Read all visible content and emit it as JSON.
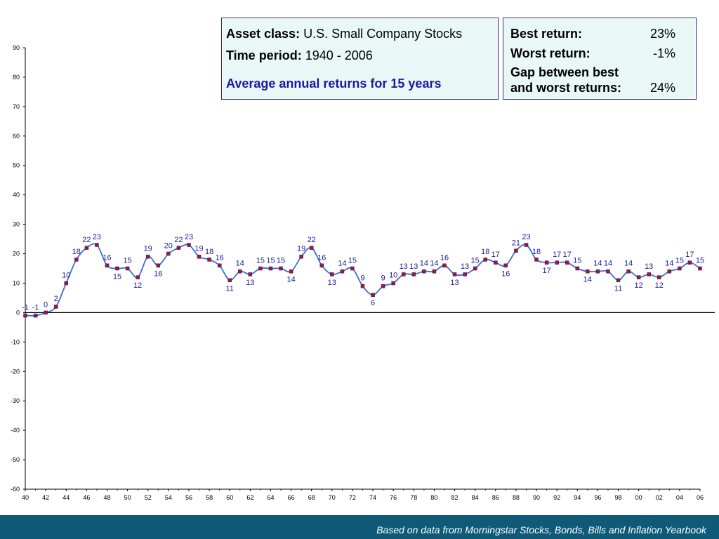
{
  "info": {
    "asset_class_label": "Asset class:",
    "asset_class_value": "U.S. Small Company Stocks",
    "time_period_label": "Time period:",
    "time_period_value": "1940 - 2006",
    "subtitle": "Average annual returns for 15 years"
  },
  "stats": {
    "best_label": "Best return:",
    "best_value": "23%",
    "worst_label": "Worst return:",
    "worst_value": "-1%",
    "gap_label_line1": "Gap between best",
    "gap_label_line2": "and worst returns:",
    "gap_value": "24%"
  },
  "footer": {
    "source_text": "Based on data from Morningstar Stocks, Bonds, Bills and Inflation Yearbook"
  },
  "colors": {
    "line": "#3a6fd8",
    "marker": "#8a1e4a",
    "label": "#1a1a9a",
    "footer_bg": "#0e5a78",
    "box_bg": "#eaf7f7"
  },
  "chart_data": {
    "type": "line",
    "title": "",
    "xlabel": "",
    "ylabel": "",
    "ylim": [
      -60,
      90
    ],
    "yticks": [
      90,
      80,
      70,
      60,
      50,
      40,
      30,
      20,
      10,
      0,
      -10,
      -20,
      -30,
      -40,
      -50,
      -60
    ],
    "xticks": [
      "40",
      "42",
      "44",
      "46",
      "48",
      "50",
      "52",
      "54",
      "56",
      "58",
      "60",
      "62",
      "64",
      "66",
      "68",
      "70",
      "72",
      "74",
      "76",
      "78",
      "80",
      "82",
      "84",
      "86",
      "88",
      "90",
      "92",
      "94",
      "96",
      "98",
      "00",
      "02",
      "04",
      "06"
    ],
    "x": [
      1940,
      1941,
      1942,
      1943,
      1944,
      1945,
      1946,
      1947,
      1948,
      1949,
      1950,
      1951,
      1952,
      1953,
      1954,
      1955,
      1956,
      1957,
      1958,
      1959,
      1960,
      1961,
      1962,
      1963,
      1964,
      1965,
      1966,
      1967,
      1968,
      1969,
      1970,
      1971,
      1972,
      1973,
      1974,
      1975,
      1976,
      1977,
      1978,
      1979,
      1980,
      1981,
      1982,
      1983,
      1984,
      1985,
      1986,
      1987,
      1988,
      1989,
      1990,
      1991,
      1992,
      1993,
      1994,
      1995,
      1996,
      1997,
      1998,
      1999,
      2000,
      2001,
      2002,
      2003,
      2004,
      2005,
      2006
    ],
    "values": [
      -1,
      -1,
      0,
      2,
      10,
      18,
      22,
      23,
      16,
      15,
      15,
      12,
      19,
      16,
      20,
      22,
      23,
      19,
      18,
      16,
      11,
      14,
      13,
      15,
      15,
      15,
      14,
      19,
      22,
      16,
      13,
      14,
      15,
      9,
      6,
      9,
      10,
      13,
      13,
      14,
      14,
      16,
      13,
      13,
      15,
      18,
      17,
      16,
      21,
      23,
      18,
      17,
      17,
      17,
      15,
      14,
      14,
      14,
      11,
      14,
      12,
      13,
      12,
      14,
      15,
      17,
      15
    ],
    "labels": [
      "-1",
      "-1",
      "0",
      "2",
      "10",
      "18",
      "22",
      "23",
      "16",
      "15",
      "15",
      "12",
      "19",
      "16",
      "20",
      "22",
      "23",
      "19",
      "18",
      "16",
      "11",
      "14",
      "13",
      "15",
      "15",
      "15",
      "14",
      "19",
      "22",
      "16",
      "13",
      "14",
      "15",
      "9",
      "6",
      "9",
      "10",
      "13",
      "13",
      "14",
      "14",
      "16",
      "13",
      "13",
      "15",
      "18",
      "17",
      "16",
      "21",
      "23",
      "18",
      "17",
      "17",
      "17",
      "15",
      "14",
      "14",
      "14",
      "11",
      "14",
      "12",
      "13",
      "12",
      "14",
      "15",
      "17",
      "15"
    ],
    "grid": false,
    "legend": "none"
  }
}
